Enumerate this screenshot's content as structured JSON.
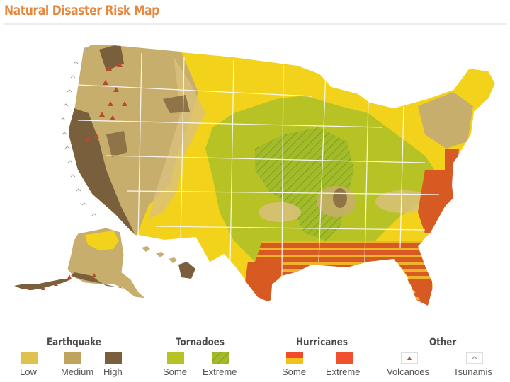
{
  "page": {
    "title": "Natural Disaster Risk Map"
  },
  "legend": {
    "groups": [
      {
        "heading": "Earthquake",
        "items": [
          {
            "label": "Low",
            "color": "#dfc14f"
          },
          {
            "label": "Medium",
            "color": "#bfa45e"
          },
          {
            "label": "High",
            "color": "#7a5f3c"
          }
        ]
      },
      {
        "heading": "Tornadoes",
        "items": [
          {
            "label": "Some",
            "color": "#b7c324"
          },
          {
            "label": "Extreme",
            "color": "#9fb82a",
            "pattern": "hatched"
          }
        ]
      },
      {
        "heading": "Hurricanes",
        "items": [
          {
            "label": "Some",
            "color": "#f04a2a",
            "pattern": "striped-yellow"
          },
          {
            "label": "Extreme",
            "color": "#f0502f"
          }
        ]
      },
      {
        "heading": "Other",
        "items": [
          {
            "label": "Volcanoes",
            "icon": "volcano-triangle-icon"
          },
          {
            "label": "Tsunamis",
            "icon": "tsunami-chevron-icon"
          }
        ]
      }
    ]
  },
  "colors": {
    "title": "#e8883f",
    "low_risk_yellow": "#f2d21a",
    "eq_low": "#dfc14f",
    "eq_medium": "#bfa45e",
    "eq_high": "#7a5f3c",
    "tornado_some": "#b7c324",
    "tornado_extreme": "#9fb82a",
    "hurricane_extreme": "#d65a22",
    "hurricane_some_yellow": "#f2c21a"
  },
  "map": {
    "regions": [
      "contiguous-us",
      "alaska",
      "hawaii"
    ]
  }
}
